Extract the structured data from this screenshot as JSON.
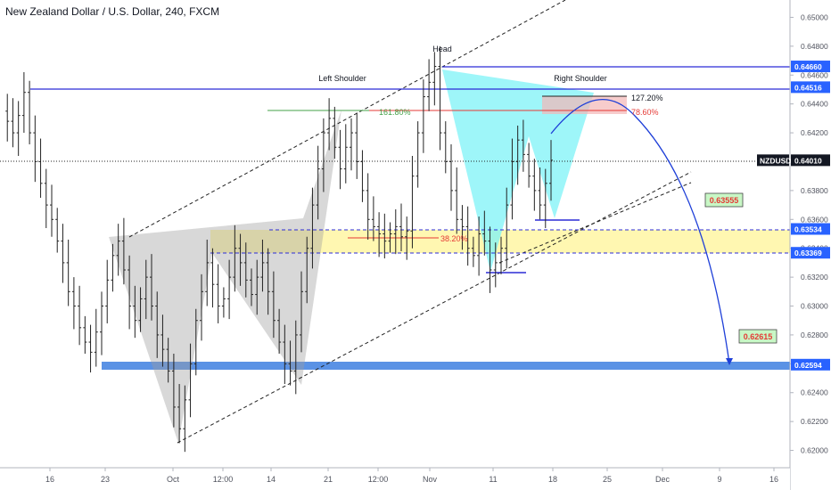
{
  "header": {
    "title": "New Zealand Dollar / U.S. Dollar, 240, FXCM"
  },
  "colors": {
    "bull": "#26a69a",
    "bear": "#131722",
    "candle": "#222222",
    "level_line": "#2b2bd6",
    "badge_blue": "#2962ff",
    "badge_dark": "#131722",
    "yellow_zone": "#fff59d",
    "blue_zone": "#3d7fe0",
    "cyan_pattern": "#7df3f7",
    "grey_pattern": "#9e9e9e",
    "red_fib": "#e53935",
    "green_fib": "#43a047",
    "arrow": "#1e3fd8",
    "target_badge": "#c8f7c5"
  },
  "chart_data": {
    "type": "candlestick",
    "symbol": "NZDUSD",
    "last_price": "0.64010",
    "ylim": [
      0.6188,
      0.6512
    ],
    "y_ticks": [
      "0.62000",
      "0.62200",
      "0.62400",
      "0.62600",
      "0.62800",
      "0.63000",
      "0.63200",
      "0.63400",
      "0.63600",
      "0.63800",
      "0.64000",
      "0.64200",
      "0.64400",
      "0.64600",
      "0.64800",
      "0.65000"
    ],
    "x_ticks": [
      "16",
      "23",
      "Oct",
      "12:00",
      "14",
      "21",
      "12:00",
      "Nov",
      "11",
      "18",
      "25",
      "Dec",
      "9",
      "16"
    ],
    "price_levels": [
      {
        "label": "0.64660",
        "value": 0.6466
      },
      {
        "label": "0.64516",
        "value": 0.64516
      },
      {
        "label": "0.63534",
        "value": 0.63534
      },
      {
        "label": "0.63369",
        "value": 0.63369
      },
      {
        "label": "0.62594",
        "value": 0.62594
      }
    ],
    "annotations": {
      "head": "Head",
      "left_shoulder": "Left Shoulder",
      "right_shoulder": "Right Shoulder",
      "fib_161": "161.80%",
      "fib_127": "127.20%",
      "fib_786": "78.60%",
      "fib_382": "38.20%",
      "target_1": "0.63555",
      "target_2": "0.62615"
    },
    "price_path": [
      0.6435,
      0.6428,
      0.642,
      0.6432,
      0.6448,
      0.642,
      0.64,
      0.6385,
      0.637,
      0.636,
      0.6345,
      0.633,
      0.631,
      0.63,
      0.6285,
      0.6275,
      0.6268,
      0.6282,
      0.63,
      0.6318,
      0.6335,
      0.6345,
      0.6325,
      0.63,
      0.629,
      0.6305,
      0.632,
      0.63,
      0.628,
      0.627,
      0.6255,
      0.623,
      0.6215,
      0.6235,
      0.626,
      0.629,
      0.631,
      0.633,
      0.6315,
      0.63,
      0.6305,
      0.632,
      0.634,
      0.633,
      0.6318,
      0.6308,
      0.632,
      0.633,
      0.631,
      0.629,
      0.6275,
      0.626,
      0.6255,
      0.628,
      0.631,
      0.634,
      0.637,
      0.6395,
      0.642,
      0.643,
      0.641,
      0.6395,
      0.641,
      0.642,
      0.64,
      0.638,
      0.636,
      0.6355,
      0.635,
      0.6345,
      0.635,
      0.6355,
      0.6348,
      0.6352,
      0.639,
      0.642,
      0.6445,
      0.6455,
      0.6466,
      0.642,
      0.64,
      0.638,
      0.636,
      0.6355,
      0.634,
      0.6335,
      0.635,
      0.6345,
      0.6325,
      0.633,
      0.634,
      0.637,
      0.64,
      0.6415,
      0.6405,
      0.639,
      0.638,
      0.637,
      0.6385,
      0.6401
    ]
  }
}
